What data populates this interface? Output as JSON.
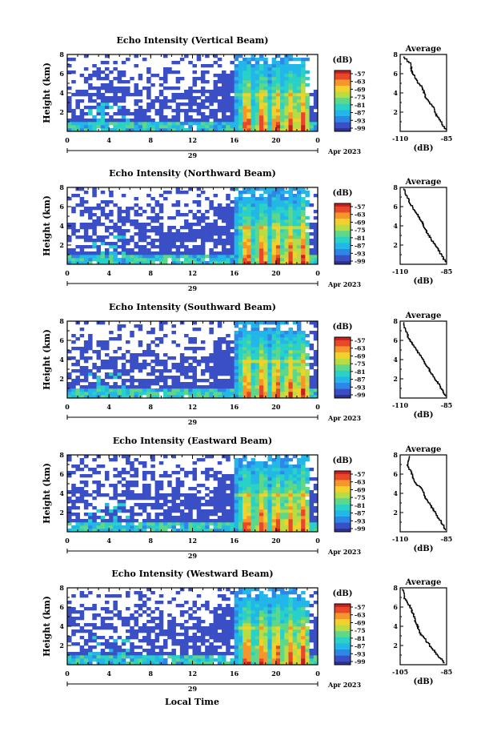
{
  "page": {
    "background": "#ffffff"
  },
  "figure": {
    "date_label": "Apr 2023",
    "day_label": "29",
    "xlabel": "Local Time",
    "ylabel": "Height (km)",
    "avg_title": "Average",
    "avg_xlabel": "(dB)",
    "cbar_label": "(dB)",
    "cbar_ticks": [
      "-57",
      "-63",
      "-69",
      "-75",
      "-81",
      "-87",
      "-93",
      "-99"
    ],
    "colormap": [
      "#2d2f8f",
      "#3a4fc6",
      "#2f86e6",
      "#22b7e8",
      "#29d1c7",
      "#5fd788",
      "#b8dc43",
      "#f3d12b",
      "#f5962a",
      "#e9472a",
      "#c61f1f"
    ]
  },
  "chart_data": [
    {
      "type": "heatmap",
      "title": "Echo Intensity (Vertical Beam)",
      "xlabel": "Local Time",
      "ylabel": "Height (km)",
      "x_ticks": [
        "0",
        "4",
        "8",
        "12",
        "16",
        "20",
        "0"
      ],
      "y_ticks": [
        "2",
        "4",
        "6",
        "8"
      ],
      "xlim": [
        0,
        24
      ],
      "ylim": [
        0,
        8
      ],
      "color_range_db": [
        -99,
        -57
      ],
      "average_profile": {
        "xlim": [
          -110,
          -85
        ],
        "x_ticks": [
          "-110",
          "-85"
        ],
        "y_ticks": [
          "2",
          "4",
          "6",
          "8"
        ],
        "x": [
          -85.5,
          -87,
          -89,
          -91,
          -92,
          -94,
          -96,
          -97,
          -98,
          -100,
          -102,
          -103,
          -104,
          -104,
          -108
        ],
        "y": [
          0.2,
          0.7,
          1.3,
          1.9,
          2.5,
          3.0,
          3.5,
          4.0,
          4.6,
          5.0,
          5.6,
          6.0,
          6.4,
          7.0,
          7.8
        ]
      }
    },
    {
      "type": "heatmap",
      "title": "Echo Intensity (Northward Beam)",
      "xlabel": "Local Time",
      "ylabel": "Height (km)",
      "x_ticks": [
        "0",
        "4",
        "8",
        "12",
        "16",
        "20",
        "0"
      ],
      "y_ticks": [
        "2",
        "4",
        "6",
        "8"
      ],
      "xlim": [
        0,
        24
      ],
      "ylim": [
        0,
        8
      ],
      "color_range_db": [
        -99,
        -57
      ],
      "average_profile": {
        "xlim": [
          -110,
          -85
        ],
        "x_ticks": [
          "-110",
          "-85"
        ],
        "y_ticks": [
          "2",
          "4",
          "6",
          "8"
        ],
        "x": [
          -85.5,
          -87,
          -89,
          -91,
          -93,
          -95,
          -97,
          -98,
          -100,
          -102,
          -104,
          -106,
          -108
        ],
        "y": [
          0.2,
          0.8,
          1.4,
          2.0,
          2.6,
          3.2,
          3.8,
          4.4,
          5.0,
          5.6,
          6.2,
          7.0,
          7.9
        ]
      }
    },
    {
      "type": "heatmap",
      "title": "Echo Intensity (Southward Beam)",
      "xlabel": "Local Time",
      "ylabel": "Height (km)",
      "x_ticks": [
        "0",
        "4",
        "8",
        "12",
        "16",
        "20",
        "0"
      ],
      "y_ticks": [
        "2",
        "4",
        "6",
        "8"
      ],
      "xlim": [
        0,
        24
      ],
      "ylim": [
        0,
        8
      ],
      "color_range_db": [
        -99,
        -57
      ],
      "average_profile": {
        "xlim": [
          -110,
          -85
        ],
        "x_ticks": [
          "-110",
          "-85"
        ],
        "y_ticks": [
          "2",
          "4",
          "6",
          "8"
        ],
        "x": [
          -85.5,
          -87,
          -89,
          -91,
          -93,
          -95,
          -97,
          -99,
          -101,
          -103,
          -105,
          -107,
          -108
        ],
        "y": [
          0.2,
          0.8,
          1.4,
          2.0,
          2.6,
          3.2,
          3.8,
          4.4,
          5.0,
          5.6,
          6.2,
          7.0,
          7.9
        ]
      }
    },
    {
      "type": "heatmap",
      "title": "Echo Intensity (Eastward Beam)",
      "xlabel": "Local Time",
      "ylabel": "Height (km)",
      "x_ticks": [
        "0",
        "4",
        "8",
        "12",
        "16",
        "20",
        "0"
      ],
      "y_ticks": [
        "2",
        "4",
        "6",
        "8"
      ],
      "xlim": [
        0,
        24
      ],
      "ylim": [
        0,
        8
      ],
      "color_range_db": [
        -99,
        -57
      ],
      "average_profile": {
        "xlim": [
          -110,
          -85
        ],
        "x_ticks": [
          "-110",
          "-85"
        ],
        "y_ticks": [
          "2",
          "4",
          "6",
          "8"
        ],
        "x": [
          -85.5,
          -87,
          -89,
          -91,
          -93,
          -95,
          -97,
          -98,
          -101,
          -103,
          -104,
          -106,
          -105
        ],
        "y": [
          0.2,
          0.8,
          1.4,
          2.0,
          2.6,
          3.2,
          3.8,
          4.4,
          5.0,
          5.6,
          6.2,
          7.0,
          7.9
        ]
      }
    },
    {
      "type": "heatmap",
      "title": "Echo Intensity (Westward Beam)",
      "xlabel": "Local Time",
      "ylabel": "Height (km)",
      "x_ticks": [
        "0",
        "4",
        "8",
        "12",
        "16",
        "20",
        "0"
      ],
      "y_ticks": [
        "2",
        "4",
        "6",
        "8"
      ],
      "xlim": [
        0,
        24
      ],
      "ylim": [
        0,
        8
      ],
      "color_range_db": [
        -99,
        -57
      ],
      "average_profile": {
        "xlim": [
          -105,
          -85
        ],
        "x_ticks": [
          "-105",
          "-85"
        ],
        "y_ticks": [
          "2",
          "4",
          "6",
          "8"
        ],
        "x": [
          -86,
          -88,
          -90,
          -92,
          -94,
          -96,
          -97,
          -98,
          -99,
          -100,
          -101,
          -103,
          -104
        ],
        "y": [
          0.2,
          0.8,
          1.4,
          2.0,
          2.6,
          3.2,
          3.8,
          4.4,
          5.0,
          5.6,
          6.2,
          7.0,
          7.9
        ]
      }
    }
  ]
}
